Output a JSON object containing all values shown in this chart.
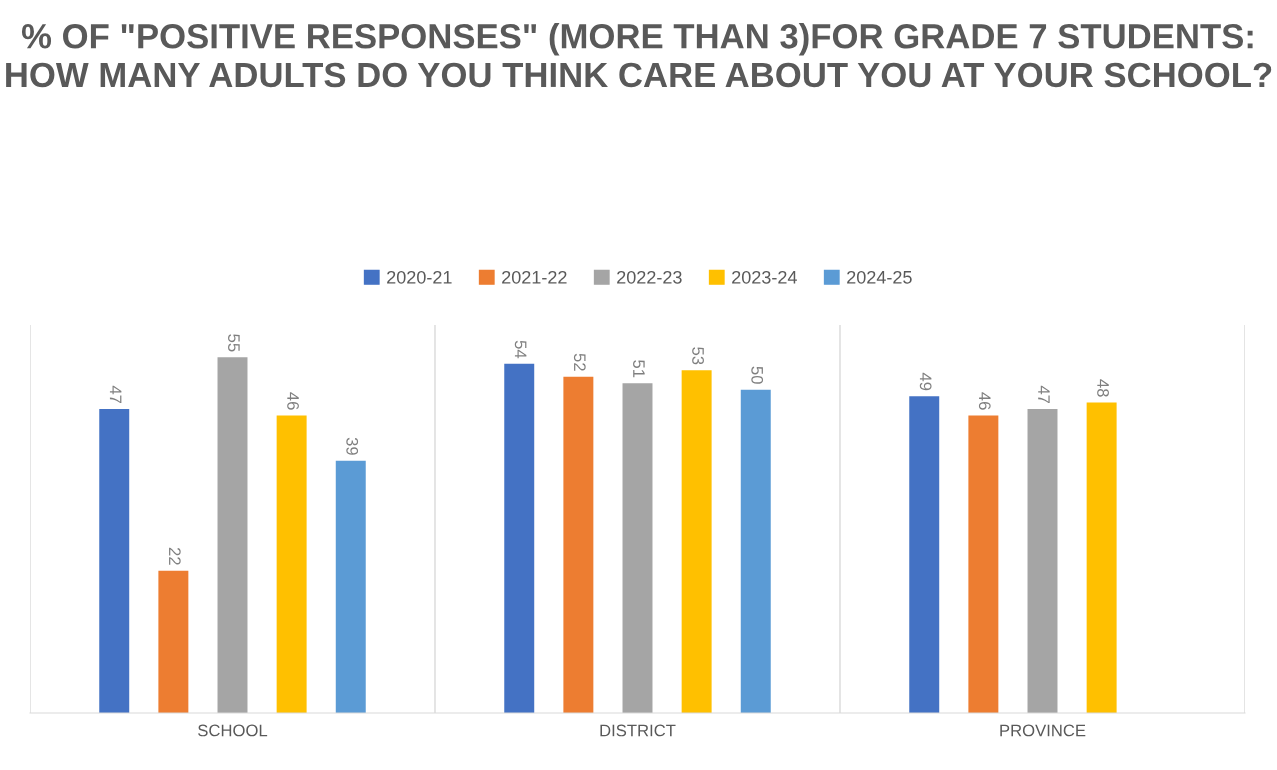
{
  "chart_data": {
    "type": "bar",
    "title": "% OF \"POSITIVE RESPONSES\" (MORE THAN 3)FOR GRADE 7 STUDENTS: HOW MANY ADULTS DO YOU THINK CARE ABOUT YOU AT YOUR SCHOOL?",
    "categories": [
      "SCHOOL",
      "DISTRICT",
      "PROVINCE"
    ],
    "series": [
      {
        "name": "2020-21",
        "color": "#4472c4",
        "values": [
          47,
          54,
          49
        ]
      },
      {
        "name": "2021-22",
        "color": "#ed7d31",
        "values": [
          22,
          52,
          46
        ]
      },
      {
        "name": "2022-23",
        "color": "#a5a5a5",
        "values": [
          55,
          51,
          47
        ]
      },
      {
        "name": "2023-24",
        "color": "#ffc000",
        "values": [
          46,
          53,
          48
        ]
      },
      {
        "name": "2024-25",
        "color": "#5b9bd5",
        "values": [
          39,
          50,
          null
        ]
      }
    ],
    "ylim": [
      0,
      60
    ],
    "data_labels": true,
    "grid": "x",
    "legend": "top",
    "tick_labels": "x"
  }
}
